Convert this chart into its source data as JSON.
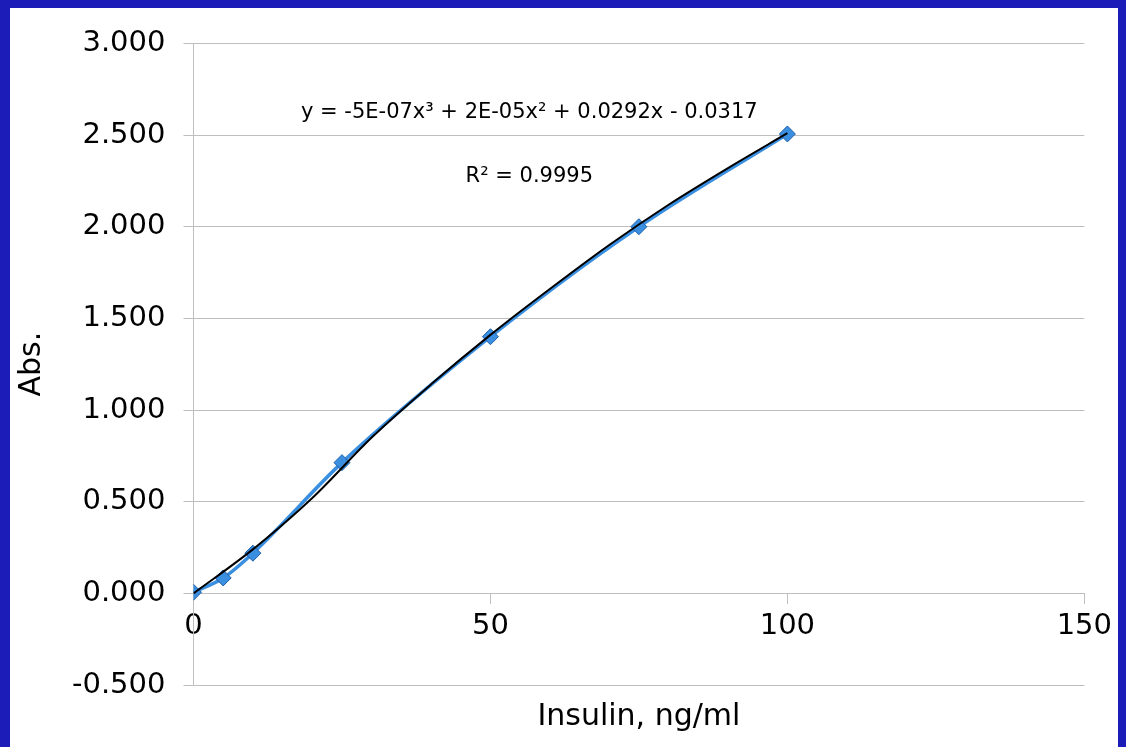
{
  "chart_data": {
    "type": "line",
    "xlabel": "Insulin, ng/ml",
    "ylabel": "Abs.",
    "annotations": [
      "y = -5E-07x³ + 2E-05x² + 0.0292x - 0.0317",
      "R² = 0.9995"
    ],
    "series": [
      {
        "type": "line",
        "color": "#3a8fe0",
        "marker": "diamond",
        "x": [
          0,
          5,
          10,
          25,
          50,
          75,
          100
        ],
        "values": [
          0.006,
          0.084,
          0.219,
          0.713,
          1.4,
          2.0,
          2.506
        ]
      },
      {
        "type": "line",
        "color": "#000000",
        "marker": "none",
        "x": [
          0,
          10,
          20,
          30,
          40,
          50,
          60,
          70,
          80,
          90,
          100
        ],
        "values": [
          0.0,
          0.24,
          0.52,
          0.85,
          1.14,
          1.41,
          1.66,
          1.9,
          2.12,
          2.32,
          2.51
        ]
      }
    ],
    "xlim": [
      0,
      150
    ],
    "xticks": [
      0,
      50,
      100,
      150
    ],
    "ylim": [
      -0.5,
      3
    ],
    "yticks": [
      {
        "value": -0.5,
        "label": "-0.500"
      },
      {
        "value": 0,
        "label": "0.000"
      },
      {
        "value": 0.5,
        "label": "0.500"
      },
      {
        "value": 1,
        "label": "1.000"
      },
      {
        "value": 1.5,
        "label": "1.500"
      },
      {
        "value": 2,
        "label": "2.000"
      },
      {
        "value": 2.5,
        "label": "2.500"
      },
      {
        "value": 3,
        "label": "3.000"
      }
    ],
    "grid": "y",
    "legend": false
  }
}
